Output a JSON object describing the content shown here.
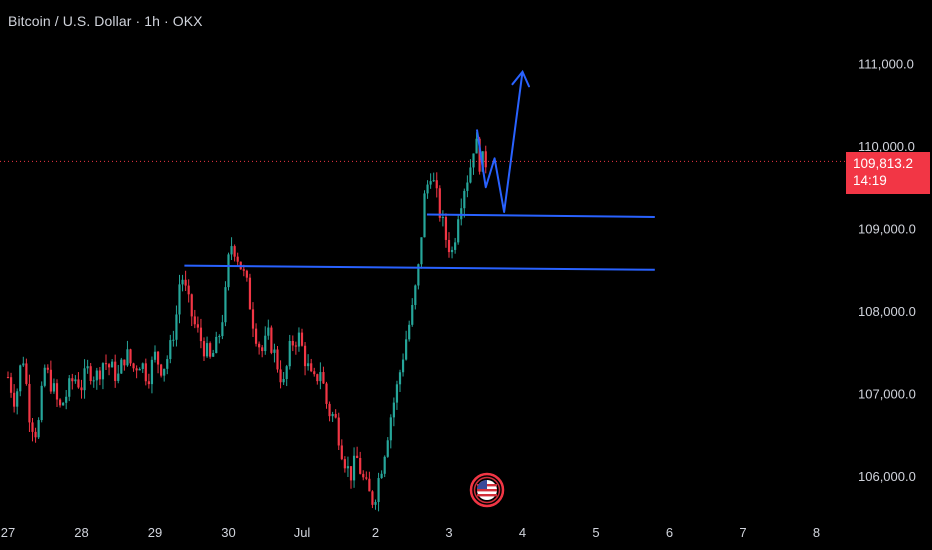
{
  "header": {
    "title": "Bitcoin / U.S. Dollar · 1h · OKX"
  },
  "current_price": {
    "value": "109,813.2",
    "countdown": "14:19",
    "color": "#f23645"
  },
  "colors": {
    "up": "#26a69a",
    "down": "#f23645",
    "drawing": "#2962ff",
    "background": "#000000"
  },
  "event_marker": {
    "icon": "us-flag-icon"
  },
  "chart_data": {
    "type": "candlestick",
    "title": "Bitcoin / U.S. Dollar · 1h · OKX",
    "x_tick_labels": [
      "27",
      "28",
      "29",
      "30",
      "Jul",
      "2",
      "3",
      "4",
      "5",
      "6",
      "7",
      "8"
    ],
    "y_tick_labels": [
      "111,000.0",
      "110,000.0",
      "109,000.0",
      "108,000.0",
      "107,000.0",
      "106,000.0"
    ],
    "y_ticks": [
      111000,
      110000,
      109000,
      108000,
      107000,
      106000
    ],
    "ylim": [
      105600,
      111600
    ],
    "candles_close_path": [
      [
        27.0,
        107200
      ],
      [
        27.1,
        106900
      ],
      [
        27.2,
        107500
      ],
      [
        27.3,
        106700
      ],
      [
        27.4,
        106500
      ],
      [
        27.5,
        107300
      ],
      [
        27.6,
        107100
      ],
      [
        27.7,
        106800
      ],
      [
        27.8,
        107000
      ],
      [
        27.9,
        107200
      ],
      [
        28.0,
        107100
      ],
      [
        28.1,
        107300
      ],
      [
        28.2,
        107200
      ],
      [
        28.3,
        107400
      ],
      [
        28.4,
        107300
      ],
      [
        28.5,
        107200
      ],
      [
        28.6,
        107500
      ],
      [
        28.7,
        107300
      ],
      [
        28.8,
        107400
      ],
      [
        28.9,
        107200
      ],
      [
        29.0,
        107450
      ],
      [
        29.1,
        107300
      ],
      [
        29.2,
        107500
      ],
      [
        29.3,
        108000
      ],
      [
        29.35,
        108500
      ],
      [
        29.45,
        108100
      ],
      [
        29.55,
        107800
      ],
      [
        29.65,
        107600
      ],
      [
        29.75,
        107400
      ],
      [
        29.85,
        107600
      ],
      [
        29.95,
        108100
      ],
      [
        30.0,
        108600
      ],
      [
        30.05,
        108850
      ],
      [
        30.15,
        108600
      ],
      [
        30.25,
        108300
      ],
      [
        30.35,
        107800
      ],
      [
        30.45,
        107500
      ],
      [
        30.55,
        107700
      ],
      [
        30.65,
        107400
      ],
      [
        30.75,
        107100
      ],
      [
        30.85,
        107600
      ],
      [
        30.95,
        107700
      ],
      [
        31.05,
        107400
      ],
      [
        31.15,
        107100
      ],
      [
        31.25,
        107300
      ],
      [
        31.35,
        106800
      ],
      [
        31.45,
        106700
      ],
      [
        31.55,
        106300
      ],
      [
        31.65,
        106000
      ],
      [
        31.75,
        106200
      ],
      [
        31.85,
        105900
      ],
      [
        31.95,
        105700
      ],
      [
        32.0,
        105800
      ],
      [
        32.1,
        106200
      ],
      [
        32.2,
        106700
      ],
      [
        32.3,
        107100
      ],
      [
        32.4,
        107600
      ],
      [
        32.5,
        108000
      ],
      [
        32.6,
        108600
      ],
      [
        32.65,
        109300
      ],
      [
        32.75,
        109700
      ],
      [
        32.85,
        109300
      ],
      [
        32.95,
        108900
      ],
      [
        33.05,
        108700
      ],
      [
        33.12,
        109200
      ],
      [
        33.2,
        109500
      ],
      [
        33.28,
        109700
      ],
      [
        33.35,
        110100
      ],
      [
        33.42,
        109800
      ],
      [
        33.5,
        109813.2
      ]
    ],
    "drawings": [
      {
        "type": "horizontal-ray",
        "from": [
          29.4,
          108550
        ],
        "to": [
          35.8,
          108500
        ]
      },
      {
        "type": "horizontal-ray",
        "from": [
          32.7,
          109170
        ],
        "to": [
          35.8,
          109140
        ]
      },
      {
        "type": "projection-path",
        "points": [
          [
            33.38,
            110200
          ],
          [
            33.5,
            109500
          ],
          [
            33.62,
            109850
          ],
          [
            33.75,
            109200
          ],
          [
            34.0,
            110900
          ]
        ]
      }
    ]
  }
}
